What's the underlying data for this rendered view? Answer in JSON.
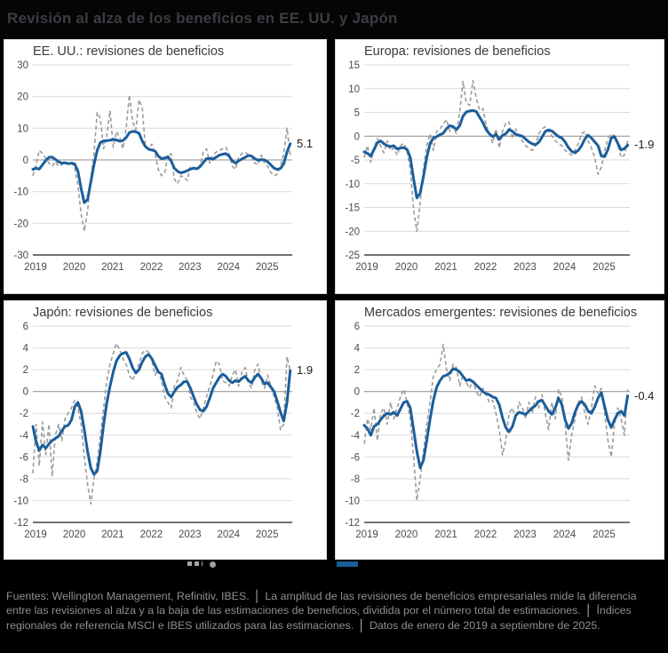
{
  "header": {
    "title": "Revisión al alza de los beneficios en EE. UU. y Japón"
  },
  "colors": {
    "page_bg": "#000000",
    "panel_bg": "#ffffff",
    "line_blue": "#1b5e9b",
    "line_gray": "#9b9b9b",
    "grid": "#dadada",
    "zero_line": "#8c8c8c",
    "axis_line": "#454545",
    "tick_text": "#4b4b4b",
    "panel_title": "#3a3a3a",
    "header_title": "#3c3c44",
    "footer_text": "#8f8f8f"
  },
  "legend": {
    "items": [
      {
        "name": "monthly-revisions-breadth",
        "swatch": "gray-dashed-line-with-dot",
        "label": ""
      },
      {
        "name": "smoothed-revisions-breadth",
        "swatch": "blue-solid-line",
        "label": ""
      }
    ],
    "note": "legend labels hidden behind footer band in source image"
  },
  "footer": {
    "separator": "│",
    "segments": [
      "Fuentes: Wellington Management, Refinitiv, IBES.",
      "La amplitud de las revisiones de beneficios empresariales mide la diferencia entre las revisiones al alza y a la baja de las estimaciones de beneficios, dividida por el número total de estimaciones.",
      "Índices regionales de referencia MSCI e IBES utilizados para las estimaciones.",
      "Datos de enero de 2019 a septiembre de 2025."
    ]
  },
  "chart_data": [
    {
      "type": "line",
      "region": "us",
      "title": "EE. UU.: revisiones de beneficios",
      "end_label": "5.1",
      "ylim": [
        -30,
        30
      ],
      "yticks": [
        30,
        20,
        10,
        0,
        -10,
        -20,
        -30
      ],
      "xticks": [
        2019,
        2020,
        2021,
        2022,
        2023,
        2024,
        2025
      ],
      "x_range": [
        2019,
        2025.72
      ],
      "x_start": 2019,
      "x_step": "month",
      "series": [
        {
          "name": "monthly",
          "style": "dashed-gray",
          "values": [
            -5.0,
            -1.5,
            3.0,
            2.0,
            0.5,
            -1.0,
            -2.0,
            -0.5,
            -2.0,
            -1.5,
            -0.5,
            -1.5,
            -1.0,
            -2.5,
            -8.0,
            -17.0,
            -22.5,
            -16.0,
            -6.0,
            2.0,
            15.0,
            13.0,
            3.5,
            8.0,
            15.5,
            4.0,
            9.0,
            7.0,
            3.5,
            10.0,
            20.5,
            12.0,
            9.5,
            19.0,
            16.5,
            4.0,
            3.5,
            5.0,
            2.0,
            -3.0,
            -5.0,
            -4.0,
            1.5,
            2.0,
            -6.0,
            -7.5,
            -5.0,
            -5.5,
            -6.5,
            -2.0,
            -2.5,
            -3.0,
            -1.5,
            2.5,
            3.5,
            -1.0,
            1.5,
            2.5,
            3.0,
            3.5,
            4.0,
            2.0,
            -2.0,
            -3.0,
            1.0,
            2.0,
            2.5,
            1.5,
            1.0,
            -1.0,
            -1.5,
            1.5,
            -1.0,
            -2.0,
            -4.0,
            -5.0,
            -4.5,
            -2.0,
            2.0,
            10.0,
            1.5
          ]
        },
        {
          "name": "smoothed",
          "style": "solid-blue",
          "values": [
            -3.0,
            -2.6,
            -2.9,
            -1.5,
            -0.2,
            0.8,
            0.9,
            0.2,
            -0.6,
            -1.0,
            -0.9,
            -1.2,
            -1.0,
            -1.3,
            -3.5,
            -9.0,
            -13.5,
            -12.5,
            -7.0,
            -1.5,
            3.0,
            5.5,
            6.0,
            6.1,
            6.2,
            6.5,
            6.3,
            5.9,
            6.1,
            7.0,
            8.6,
            9.0,
            8.9,
            8.4,
            6.0,
            4.2,
            3.4,
            3.1,
            2.8,
            1.2,
            0.4,
            0.6,
            1.0,
            -0.4,
            -2.6,
            -3.6,
            -4.1,
            -3.8,
            -3.4,
            -2.9,
            -2.6,
            -2.8,
            -2.1,
            -0.8,
            0.4,
            0.5,
            0.2,
            0.9,
            1.5,
            1.8,
            2.0,
            1.2,
            -0.3,
            -1.0,
            -0.3,
            0.3,
            0.8,
            1.4,
            1.2,
            0.4,
            -0.1,
            0.1,
            0.0,
            -0.6,
            -1.6,
            -2.6,
            -3.0,
            -2.7,
            -1.2,
            2.5,
            5.1
          ]
        }
      ]
    },
    {
      "type": "line",
      "region": "europe",
      "title": "Europa: revisiones de beneficios",
      "end_label": "-1.9",
      "ylim": [
        -25,
        15
      ],
      "yticks": [
        15,
        10,
        5,
        0,
        -5,
        -10,
        -15,
        -20,
        -25
      ],
      "xticks": [
        2019,
        2020,
        2021,
        2022,
        2023,
        2024,
        2025
      ],
      "x_range": [
        2019,
        2025.72
      ],
      "x_start": 2019,
      "x_step": "month",
      "series": [
        {
          "name": "monthly",
          "style": "dashed-gray",
          "values": [
            -4.5,
            -2.0,
            -5.5,
            -2.5,
            -0.5,
            -2.0,
            -3.5,
            -1.0,
            -3.0,
            -2.5,
            -4.0,
            -2.0,
            -1.5,
            -3.0,
            -7.0,
            -15.5,
            -20.0,
            -14.0,
            -7.0,
            -2.0,
            0.5,
            -3.0,
            1.0,
            1.5,
            2.5,
            3.5,
            1.0,
            2.0,
            0.5,
            5.0,
            11.5,
            7.0,
            6.5,
            11.7,
            8.0,
            5.5,
            5.8,
            2.5,
            0.5,
            -1.5,
            1.5,
            -2.5,
            1.0,
            2.8,
            3.0,
            -0.5,
            1.5,
            0.0,
            -1.0,
            -2.0,
            -2.5,
            -3.0,
            -2.0,
            0.5,
            1.5,
            2.0,
            1.0,
            0.0,
            -1.0,
            -1.5,
            -2.0,
            -3.0,
            -3.5,
            -4.0,
            -3.0,
            -1.5,
            0.5,
            1.0,
            -1.0,
            -2.5,
            -4.5,
            -8.0,
            -6.5,
            -3.0,
            -0.5,
            0.5,
            0.0,
            -2.0,
            -4.5,
            -4.0,
            -1.0
          ]
        },
        {
          "name": "smoothed",
          "style": "solid-blue",
          "values": [
            -3.3,
            -3.6,
            -4.2,
            -2.8,
            -1.4,
            -1.0,
            -1.6,
            -2.0,
            -2.2,
            -2.0,
            -2.7,
            -2.5,
            -2.4,
            -2.8,
            -4.5,
            -9.0,
            -13.0,
            -12.0,
            -8.5,
            -4.5,
            -1.5,
            -0.4,
            -0.1,
            0.3,
            0.6,
            1.6,
            2.2,
            2.0,
            1.4,
            2.2,
            4.2,
            5.1,
            5.3,
            5.4,
            5.2,
            4.0,
            2.9,
            1.4,
            0.5,
            -0.1,
            0.4,
            -0.7,
            0.2,
            0.5,
            1.4,
            1.0,
            0.4,
            0.2,
            0.0,
            -0.6,
            -1.2,
            -1.6,
            -1.8,
            -1.3,
            -0.2,
            1.0,
            1.3,
            1.1,
            0.5,
            -0.1,
            -0.4,
            -1.2,
            -2.4,
            -3.2,
            -3.5,
            -3.0,
            -2.0,
            -0.6,
            0.2,
            -0.4,
            -1.2,
            -2.0,
            -4.2,
            -4.3,
            -2.8,
            -0.4,
            -0.1,
            -1.5,
            -2.9,
            -2.6,
            -1.9
          ]
        }
      ]
    },
    {
      "type": "line",
      "region": "japan",
      "title": "Japón: revisiones de beneficios",
      "end_label": "1.9",
      "ylim": [
        -12,
        6
      ],
      "yticks": [
        6,
        4,
        2,
        0,
        -2,
        -4,
        -6,
        -8,
        -10,
        -12
      ],
      "xticks": [
        2019,
        2020,
        2021,
        2022,
        2023,
        2024,
        2025
      ],
      "x_range": [
        2019,
        2025.72
      ],
      "x_start": 2019,
      "x_step": "month",
      "series": [
        {
          "name": "monthly",
          "style": "dashed-gray",
          "values": [
            -7.5,
            -3.0,
            -6.8,
            -2.8,
            -5.8,
            -3.0,
            -7.8,
            -4.0,
            -3.0,
            -4.5,
            -2.5,
            -2.0,
            -1.5,
            -0.8,
            -1.5,
            -3.0,
            -6.0,
            -8.5,
            -10.3,
            -8.0,
            -6.5,
            -4.0,
            -1.5,
            1.0,
            2.5,
            3.5,
            4.4,
            3.8,
            3.0,
            2.5,
            1.5,
            1.0,
            1.8,
            2.5,
            3.5,
            3.8,
            3.6,
            2.8,
            1.5,
            2.0,
            1.0,
            -0.5,
            -1.0,
            -1.5,
            0.5,
            1.0,
            2.2,
            1.5,
            1.0,
            -0.5,
            -1.0,
            -2.0,
            -2.5,
            -1.5,
            -0.5,
            0.5,
            1.5,
            2.8,
            2.5,
            1.0,
            0.8,
            0.5,
            1.5,
            2.0,
            0.5,
            1.8,
            2.2,
            0.8,
            0.3,
            2.0,
            2.5,
            1.0,
            0.3,
            1.5,
            0.5,
            -0.5,
            -1.5,
            -3.5,
            -3.0,
            3.2,
            1.9
          ]
        },
        {
          "name": "smoothed",
          "style": "solid-blue",
          "values": [
            -3.2,
            -4.6,
            -5.4,
            -4.9,
            -5.2,
            -4.8,
            -4.5,
            -4.3,
            -4.1,
            -3.6,
            -3.2,
            -3.1,
            -2.6,
            -1.4,
            -1.0,
            -1.8,
            -3.5,
            -5.5,
            -7.0,
            -7.6,
            -7.3,
            -5.5,
            -3.0,
            -1.0,
            0.5,
            1.8,
            2.8,
            3.3,
            3.5,
            3.6,
            3.0,
            2.2,
            1.7,
            2.0,
            2.7,
            3.2,
            3.4,
            3.0,
            2.4,
            1.8,
            1.6,
            0.6,
            -0.2,
            -0.5,
            0.0,
            0.4,
            0.6,
            0.9,
            0.9,
            0.3,
            -0.5,
            -1.2,
            -1.7,
            -1.8,
            -1.4,
            -0.6,
            0.3,
            0.8,
            1.3,
            1.6,
            1.4,
            1.0,
            0.8,
            1.0,
            0.9,
            1.2,
            1.4,
            1.0,
            0.8,
            1.3,
            1.6,
            1.2,
            0.7,
            0.8,
            0.4,
            0.0,
            -0.9,
            -1.9,
            -2.7,
            -1.0,
            1.9
          ]
        }
      ]
    },
    {
      "type": "line",
      "region": "emerging-markets",
      "title": "Mercados emergentes: revisiones de beneficios",
      "end_label": "-0.4",
      "ylim": [
        -12,
        6
      ],
      "yticks": [
        6,
        4,
        2,
        0,
        -2,
        -4,
        -6,
        -8,
        -10,
        -12
      ],
      "xticks": [
        2019,
        2020,
        2021,
        2022,
        2023,
        2024,
        2025
      ],
      "x_range": [
        2019,
        2025.72
      ],
      "x_start": 2019,
      "x_step": "month",
      "series": [
        {
          "name": "monthly",
          "style": "dashed-gray",
          "values": [
            -4.8,
            -2.5,
            -3.5,
            -1.5,
            -4.5,
            -2.0,
            -1.5,
            -3.0,
            -1.0,
            -2.5,
            -1.5,
            -0.5,
            0.2,
            -1.0,
            -2.5,
            -6.0,
            -10.0,
            -8.0,
            -5.5,
            -3.0,
            -1.0,
            1.5,
            2.0,
            2.5,
            4.3,
            2.0,
            1.0,
            2.5,
            2.2,
            0.5,
            1.5,
            0.8,
            0.3,
            1.0,
            0.0,
            -0.5,
            0.3,
            -0.3,
            -1.0,
            -0.8,
            -2.0,
            -3.5,
            -5.8,
            -4.5,
            -2.0,
            -1.5,
            -2.5,
            -1.0,
            -1.5,
            -2.5,
            -1.0,
            -2.0,
            -0.5,
            -1.5,
            -0.3,
            -2.0,
            -3.5,
            -1.0,
            -2.5,
            0.2,
            -0.5,
            -3.0,
            -6.3,
            -4.0,
            -2.5,
            -1.0,
            -0.5,
            -2.0,
            -3.0,
            -1.5,
            0.5,
            -0.2,
            0.3,
            -2.0,
            -4.5,
            -6.0,
            -3.0,
            -1.5,
            -2.5,
            -4.0,
            0.2
          ]
        },
        {
          "name": "smoothed",
          "style": "solid-blue",
          "values": [
            -3.1,
            -3.4,
            -4.0,
            -3.2,
            -3.0,
            -2.6,
            -2.2,
            -2.0,
            -2.1,
            -1.9,
            -2.2,
            -1.6,
            -1.0,
            -0.9,
            -1.5,
            -3.5,
            -5.5,
            -7.0,
            -6.3,
            -4.5,
            -2.5,
            -0.8,
            0.4,
            1.0,
            1.4,
            1.5,
            1.7,
            2.1,
            2.0,
            1.8,
            1.4,
            1.0,
            1.1,
            0.9,
            0.6,
            0.3,
            0.0,
            -0.2,
            -0.3,
            -0.5,
            -0.6,
            -1.2,
            -2.4,
            -3.3,
            -3.7,
            -3.2,
            -2.2,
            -1.9,
            -2.0,
            -2.1,
            -1.8,
            -1.5,
            -1.3,
            -0.9,
            -0.8,
            -1.3,
            -1.8,
            -2.1,
            -1.5,
            -0.6,
            -1.2,
            -2.6,
            -3.4,
            -2.9,
            -1.9,
            -1.2,
            -0.9,
            -1.2,
            -1.8,
            -2.0,
            -1.4,
            -0.6,
            -0.1,
            -1.4,
            -2.6,
            -3.3,
            -2.6,
            -2.0,
            -1.8,
            -2.2,
            -0.4
          ]
        }
      ]
    }
  ]
}
